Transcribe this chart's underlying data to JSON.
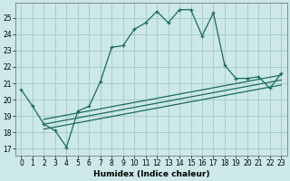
{
  "xlabel": "Humidex (Indice chaleur)",
  "bg_color": "#cce8e8",
  "grid_color": "#aacccc",
  "line_color": "#1a6b5a",
  "xlim": [
    -0.5,
    23.5
  ],
  "ylim": [
    16.6,
    25.9
  ],
  "yticks": [
    17,
    18,
    19,
    20,
    21,
    22,
    23,
    24,
    25
  ],
  "xticks": [
    0,
    1,
    2,
    3,
    4,
    5,
    6,
    7,
    8,
    9,
    10,
    11,
    12,
    13,
    14,
    15,
    16,
    17,
    18,
    19,
    20,
    21,
    22,
    23
  ],
  "main_x": [
    0,
    1,
    2,
    3,
    4,
    5,
    6,
    7,
    8,
    9,
    10,
    11,
    12,
    13,
    14,
    15,
    16,
    17,
    18,
    19,
    20,
    21,
    22,
    23
  ],
  "main_y": [
    20.6,
    19.6,
    18.5,
    18.1,
    17.1,
    19.3,
    19.6,
    21.1,
    23.2,
    23.3,
    24.3,
    24.7,
    25.4,
    24.7,
    25.5,
    25.5,
    23.9,
    25.3,
    22.1,
    21.3,
    21.3,
    21.4,
    20.7,
    21.6
  ],
  "trend1_x": [
    2,
    23
  ],
  "trend1_y": [
    18.8,
    21.5
  ],
  "trend2_x": [
    2,
    23
  ],
  "trend2_y": [
    18.5,
    21.2
  ],
  "trend3_x": [
    2,
    23
  ],
  "trend3_y": [
    18.2,
    20.9
  ]
}
